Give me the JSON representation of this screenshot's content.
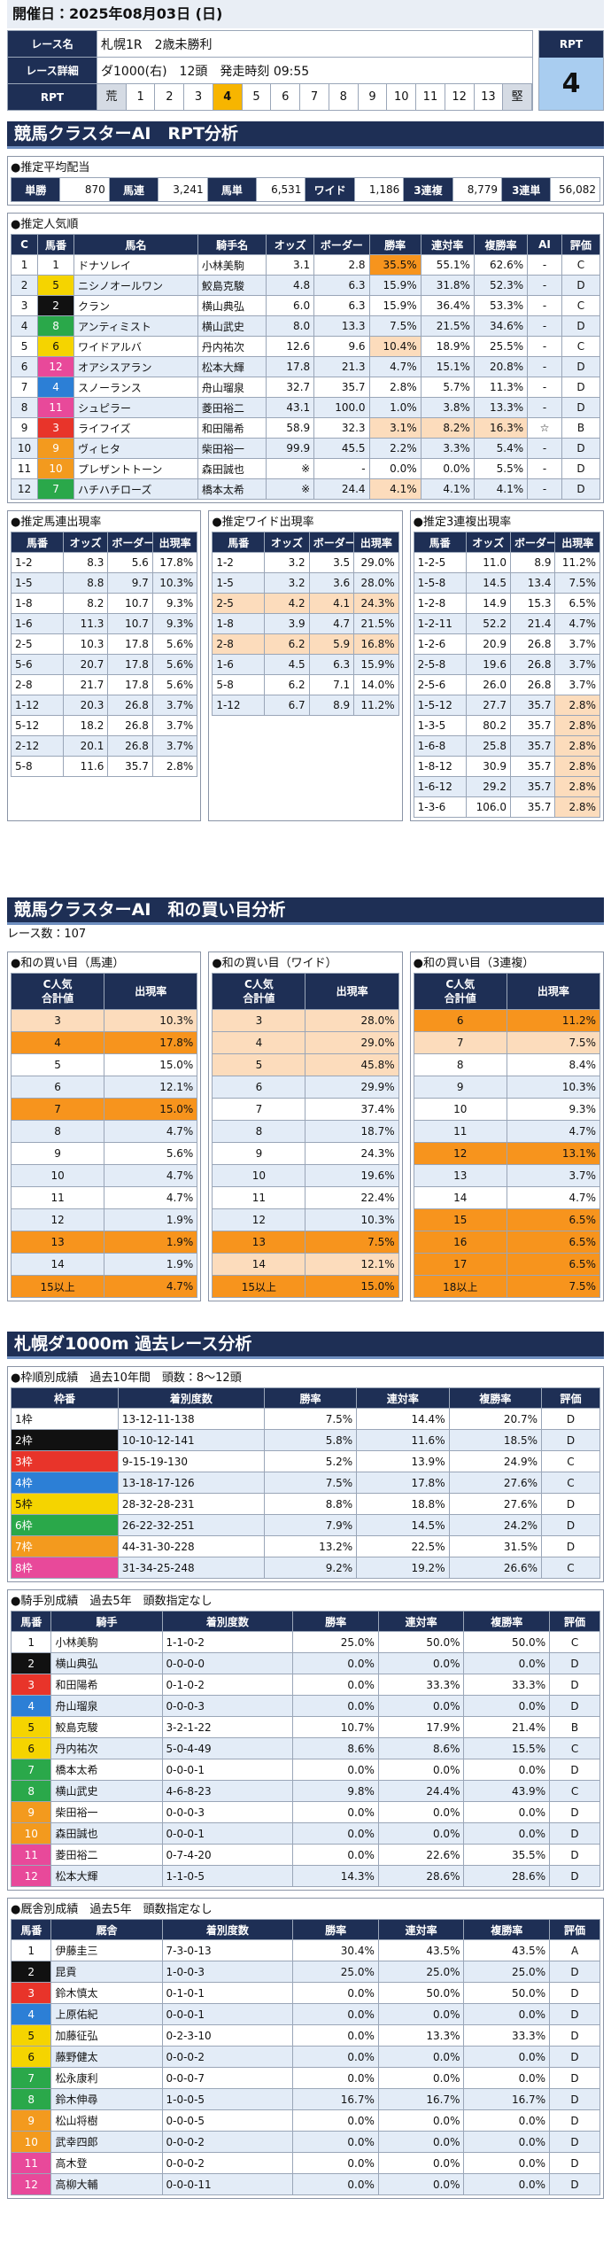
{
  "header": {
    "date": "開催日：2025年08月03日 (日)",
    "race_name_label": "レース名",
    "race_name": "札幌1R　2歳未勝利",
    "race_detail_label": "レース詳細",
    "race_detail": "ダ1000(右)　12頭　発走時刻 09:55",
    "rpt_label": "RPT",
    "rpt_scale": [
      "荒",
      "1",
      "2",
      "3",
      "4",
      "5",
      "6",
      "7",
      "8",
      "9",
      "10",
      "11",
      "12",
      "13",
      "堅"
    ],
    "rpt_box_label": "RPT",
    "rpt_value": "4"
  },
  "rpt_section": {
    "title": "競馬クラスターAI　RPT分析",
    "payout": {
      "label": "●推定平均配当",
      "items": [
        [
          "単勝",
          "870"
        ],
        [
          "馬連",
          "3,241"
        ],
        [
          "馬単",
          "6,531"
        ],
        [
          "ワイド",
          "1,186"
        ],
        [
          "3連複",
          "8,779"
        ],
        [
          "3連単",
          "56,082"
        ]
      ]
    },
    "popularity": {
      "label": "●推定人気順",
      "columns": [
        "C",
        "馬番",
        "馬名",
        "騎手名",
        "オッズ",
        "ボーダー",
        "勝率",
        "連対率",
        "複勝率",
        "AI",
        "評価"
      ],
      "rows": [
        [
          "1",
          "1",
          "ドナソレイ",
          "小林美駒",
          "3.1",
          "2.8",
          "35.5%",
          "55.1%",
          "62.6%",
          "-",
          "C"
        ],
        [
          "2",
          "5",
          "ニシノオールワン",
          "鮫島克駿",
          "4.8",
          "6.3",
          "15.9%",
          "31.8%",
          "52.3%",
          "-",
          "D"
        ],
        [
          "3",
          "2",
          "クラン",
          "横山典弘",
          "6.0",
          "6.3",
          "15.9%",
          "36.4%",
          "53.3%",
          "-",
          "C"
        ],
        [
          "4",
          "8",
          "アンティミスト",
          "横山武史",
          "8.0",
          "13.3",
          "7.5%",
          "21.5%",
          "34.6%",
          "-",
          "D"
        ],
        [
          "5",
          "6",
          "ワイドアルバ",
          "丹内祐次",
          "12.6",
          "9.6",
          "10.4%",
          "18.9%",
          "25.5%",
          "-",
          "C"
        ],
        [
          "6",
          "12",
          "オアシスアラン",
          "松本大輝",
          "17.8",
          "21.3",
          "4.7%",
          "15.1%",
          "20.8%",
          "-",
          "D"
        ],
        [
          "7",
          "4",
          "スノーランス",
          "舟山瑠泉",
          "32.7",
          "35.7",
          "2.8%",
          "5.7%",
          "11.3%",
          "-",
          "D"
        ],
        [
          "8",
          "11",
          "シュピラー",
          "菱田裕二",
          "43.1",
          "100.0",
          "1.0%",
          "3.8%",
          "13.3%",
          "-",
          "D"
        ],
        [
          "9",
          "3",
          "ライフイズ",
          "和田陽希",
          "58.9",
          "32.3",
          "3.1%",
          "8.2%",
          "16.3%",
          "☆",
          "B"
        ],
        [
          "10",
          "9",
          "ヴィヒタ",
          "柴田裕一",
          "99.9",
          "45.5",
          "2.2%",
          "3.3%",
          "5.4%",
          "-",
          "D"
        ],
        [
          "11",
          "10",
          "プレザントトーン",
          "森田誠也",
          "※",
          "-",
          "0.0%",
          "0.0%",
          "5.5%",
          "-",
          "D"
        ],
        [
          "12",
          "7",
          "ハチハチローズ",
          "橋本太希",
          "※",
          "24.4",
          "4.1%",
          "4.1%",
          "4.1%",
          "-",
          "D"
        ]
      ]
    },
    "umaren": {
      "label": "●推定馬連出現率",
      "columns": [
        "馬番",
        "オッズ",
        "ボーダー",
        "出現率"
      ],
      "rows": [
        [
          "1-2",
          "8.3",
          "5.6",
          "17.8%"
        ],
        [
          "1-5",
          "8.8",
          "9.7",
          "10.3%"
        ],
        [
          "1-8",
          "8.2",
          "10.7",
          "9.3%"
        ],
        [
          "1-6",
          "11.3",
          "10.7",
          "9.3%"
        ],
        [
          "2-5",
          "10.3",
          "17.8",
          "5.6%"
        ],
        [
          "5-6",
          "20.7",
          "17.8",
          "5.6%"
        ],
        [
          "2-8",
          "21.7",
          "17.8",
          "5.6%"
        ],
        [
          "1-12",
          "20.3",
          "26.8",
          "3.7%"
        ],
        [
          "5-12",
          "18.2",
          "26.8",
          "3.7%"
        ],
        [
          "2-12",
          "20.1",
          "26.8",
          "3.7%"
        ],
        [
          "5-8",
          "11.6",
          "35.7",
          "2.8%"
        ]
      ]
    },
    "wide": {
      "label": "●推定ワイド出現率",
      "columns": [
        "馬番",
        "オッズ",
        "ボーダー",
        "出現率"
      ],
      "rows": [
        [
          "1-2",
          "3.2",
          "3.5",
          "29.0%"
        ],
        [
          "1-5",
          "3.2",
          "3.6",
          "28.0%"
        ],
        [
          "2-5",
          "4.2",
          "4.1",
          "24.3%"
        ],
        [
          "1-8",
          "3.9",
          "4.7",
          "21.5%"
        ],
        [
          "2-8",
          "6.2",
          "5.9",
          "16.8%"
        ],
        [
          "1-6",
          "4.5",
          "6.3",
          "15.9%"
        ],
        [
          "5-8",
          "6.2",
          "7.1",
          "14.0%"
        ],
        [
          "1-12",
          "6.7",
          "8.9",
          "11.2%"
        ]
      ]
    },
    "sanrenpuku": {
      "label": "●推定3連複出現率",
      "columns": [
        "馬番",
        "オッズ",
        "ボーダー",
        "出現率"
      ],
      "rows": [
        [
          "1-2-5",
          "11.0",
          "8.9",
          "11.2%"
        ],
        [
          "1-5-8",
          "14.5",
          "13.4",
          "7.5%"
        ],
        [
          "1-2-8",
          "14.9",
          "15.3",
          "6.5%"
        ],
        [
          "1-2-11",
          "52.2",
          "21.4",
          "4.7%"
        ],
        [
          "1-2-6",
          "20.9",
          "26.8",
          "3.7%"
        ],
        [
          "2-5-8",
          "19.6",
          "26.8",
          "3.7%"
        ],
        [
          "2-5-6",
          "26.0",
          "26.8",
          "3.7%"
        ],
        [
          "1-5-12",
          "27.7",
          "35.7",
          "2.8%"
        ],
        [
          "1-3-5",
          "80.2",
          "35.7",
          "2.8%"
        ],
        [
          "1-6-8",
          "25.8",
          "35.7",
          "2.8%"
        ],
        [
          "1-8-12",
          "30.9",
          "35.7",
          "2.8%"
        ],
        [
          "1-6-12",
          "29.2",
          "35.7",
          "2.8%"
        ],
        [
          "1-3-6",
          "106.0",
          "35.7",
          "2.8%"
        ]
      ]
    }
  },
  "wa_section": {
    "title": "競馬クラスターAI　和の買い目分析",
    "race_count": "レース数：107",
    "tables": [
      {
        "label": "●和の買い目（馬連）",
        "columns": [
          "C人気\n合計値",
          "出現率"
        ],
        "rows": [
          [
            "3",
            "10.3%"
          ],
          [
            "4",
            "17.8%"
          ],
          [
            "5",
            "15.0%"
          ],
          [
            "6",
            "12.1%"
          ],
          [
            "7",
            "15.0%"
          ],
          [
            "8",
            "4.7%"
          ],
          [
            "9",
            "5.6%"
          ],
          [
            "10",
            "4.7%"
          ],
          [
            "11",
            "4.7%"
          ],
          [
            "12",
            "1.9%"
          ],
          [
            "13",
            "1.9%"
          ],
          [
            "14",
            "1.9%"
          ],
          [
            "15以上",
            "4.7%"
          ]
        ]
      },
      {
        "label": "●和の買い目（ワイド）",
        "columns": [
          "C人気\n合計値",
          "出現率"
        ],
        "rows": [
          [
            "3",
            "28.0%"
          ],
          [
            "4",
            "29.0%"
          ],
          [
            "5",
            "45.8%"
          ],
          [
            "6",
            "29.9%"
          ],
          [
            "7",
            "37.4%"
          ],
          [
            "8",
            "18.7%"
          ],
          [
            "9",
            "24.3%"
          ],
          [
            "10",
            "19.6%"
          ],
          [
            "11",
            "22.4%"
          ],
          [
            "12",
            "10.3%"
          ],
          [
            "13",
            "7.5%"
          ],
          [
            "14",
            "12.1%"
          ],
          [
            "15以上",
            "15.0%"
          ]
        ]
      },
      {
        "label": "●和の買い目（3連複）",
        "columns": [
          "C人気\n合計値",
          "出現率"
        ],
        "rows": [
          [
            "6",
            "11.2%"
          ],
          [
            "7",
            "7.5%"
          ],
          [
            "8",
            "8.4%"
          ],
          [
            "9",
            "10.3%"
          ],
          [
            "10",
            "9.3%"
          ],
          [
            "11",
            "4.7%"
          ],
          [
            "12",
            "13.1%"
          ],
          [
            "13",
            "3.7%"
          ],
          [
            "14",
            "4.7%"
          ],
          [
            "15",
            "6.5%"
          ],
          [
            "16",
            "6.5%"
          ],
          [
            "17",
            "6.5%"
          ],
          [
            "18以上",
            "7.5%"
          ]
        ]
      }
    ]
  },
  "past_section": {
    "title": "札幌ダ1000m 過去レース分析",
    "waku": {
      "label": "●枠順別成績　過去10年間　頭数：8～12頭",
      "columns": [
        "枠番",
        "着別度数",
        "勝率",
        "連対率",
        "複勝率",
        "評価"
      ],
      "rows": [
        [
          "1枠",
          "13-12-11-138",
          "7.5%",
          "14.4%",
          "20.7%",
          "D"
        ],
        [
          "2枠",
          "10-10-12-141",
          "5.8%",
          "11.6%",
          "18.5%",
          "D"
        ],
        [
          "3枠",
          "9-15-19-130",
          "5.2%",
          "13.9%",
          "24.9%",
          "C"
        ],
        [
          "4枠",
          "13-18-17-126",
          "7.5%",
          "17.8%",
          "27.6%",
          "C"
        ],
        [
          "5枠",
          "28-32-28-231",
          "8.8%",
          "18.8%",
          "27.6%",
          "D"
        ],
        [
          "6枠",
          "26-22-32-251",
          "7.9%",
          "14.5%",
          "24.2%",
          "D"
        ],
        [
          "7枠",
          "44-31-30-228",
          "13.2%",
          "22.5%",
          "31.5%",
          "D"
        ],
        [
          "8枠",
          "31-34-25-248",
          "9.2%",
          "19.2%",
          "26.6%",
          "C"
        ]
      ]
    },
    "jockey": {
      "label": "●騎手別成績　過去5年　頭数指定なし",
      "columns": [
        "馬番",
        "騎手",
        "着別度数",
        "勝率",
        "連対率",
        "複勝率",
        "評価"
      ],
      "rows": [
        [
          "1",
          "小林美駒",
          "1-1-0-2",
          "25.0%",
          "50.0%",
          "50.0%",
          "C"
        ],
        [
          "2",
          "横山典弘",
          "0-0-0-0",
          "0.0%",
          "0.0%",
          "0.0%",
          "D"
        ],
        [
          "3",
          "和田陽希",
          "0-1-0-2",
          "0.0%",
          "33.3%",
          "33.3%",
          "D"
        ],
        [
          "4",
          "舟山瑠泉",
          "0-0-0-3",
          "0.0%",
          "0.0%",
          "0.0%",
          "D"
        ],
        [
          "5",
          "鮫島克駿",
          "3-2-1-22",
          "10.7%",
          "17.9%",
          "21.4%",
          "B"
        ],
        [
          "6",
          "丹内祐次",
          "5-0-4-49",
          "8.6%",
          "8.6%",
          "15.5%",
          "C"
        ],
        [
          "7",
          "橋本太希",
          "0-0-0-1",
          "0.0%",
          "0.0%",
          "0.0%",
          "D"
        ],
        [
          "8",
          "横山武史",
          "4-6-8-23",
          "9.8%",
          "24.4%",
          "43.9%",
          "C"
        ],
        [
          "9",
          "柴田裕一",
          "0-0-0-3",
          "0.0%",
          "0.0%",
          "0.0%",
          "D"
        ],
        [
          "10",
          "森田誠也",
          "0-0-0-1",
          "0.0%",
          "0.0%",
          "0.0%",
          "D"
        ],
        [
          "11",
          "菱田裕二",
          "0-7-4-20",
          "0.0%",
          "22.6%",
          "35.5%",
          "D"
        ],
        [
          "12",
          "松本大輝",
          "1-1-0-5",
          "14.3%",
          "28.6%",
          "28.6%",
          "D"
        ]
      ]
    },
    "trainer": {
      "label": "●厩舎別成績　過去5年　頭数指定なし",
      "columns": [
        "馬番",
        "厩舎",
        "着別度数",
        "勝率",
        "連対率",
        "複勝率",
        "評価"
      ],
      "rows": [
        [
          "1",
          "伊藤圭三",
          "7-3-0-13",
          "30.4%",
          "43.5%",
          "43.5%",
          "A"
        ],
        [
          "2",
          "昆貢",
          "1-0-0-3",
          "25.0%",
          "25.0%",
          "25.0%",
          "D"
        ],
        [
          "3",
          "鈴木慎太",
          "0-1-0-1",
          "0.0%",
          "50.0%",
          "50.0%",
          "D"
        ],
        [
          "4",
          "上原佑紀",
          "0-0-0-1",
          "0.0%",
          "0.0%",
          "0.0%",
          "D"
        ],
        [
          "5",
          "加藤征弘",
          "0-2-3-10",
          "0.0%",
          "13.3%",
          "33.3%",
          "D"
        ],
        [
          "6",
          "藤野健太",
          "0-0-0-2",
          "0.0%",
          "0.0%",
          "0.0%",
          "D"
        ],
        [
          "7",
          "松永康利",
          "0-0-0-7",
          "0.0%",
          "0.0%",
          "0.0%",
          "D"
        ],
        [
          "8",
          "鈴木伸尋",
          "1-0-0-5",
          "16.7%",
          "16.7%",
          "16.7%",
          "D"
        ],
        [
          "9",
          "松山将樹",
          "0-0-0-5",
          "0.0%",
          "0.0%",
          "0.0%",
          "D"
        ],
        [
          "10",
          "武幸四郎",
          "0-0-0-2",
          "0.0%",
          "0.0%",
          "0.0%",
          "D"
        ],
        [
          "11",
          "高木登",
          "0-0-0-2",
          "0.0%",
          "0.0%",
          "0.0%",
          "D"
        ],
        [
          "12",
          "高柳大輔",
          "0-0-0-11",
          "0.0%",
          "0.0%",
          "0.0%",
          "D"
        ]
      ]
    }
  }
}
